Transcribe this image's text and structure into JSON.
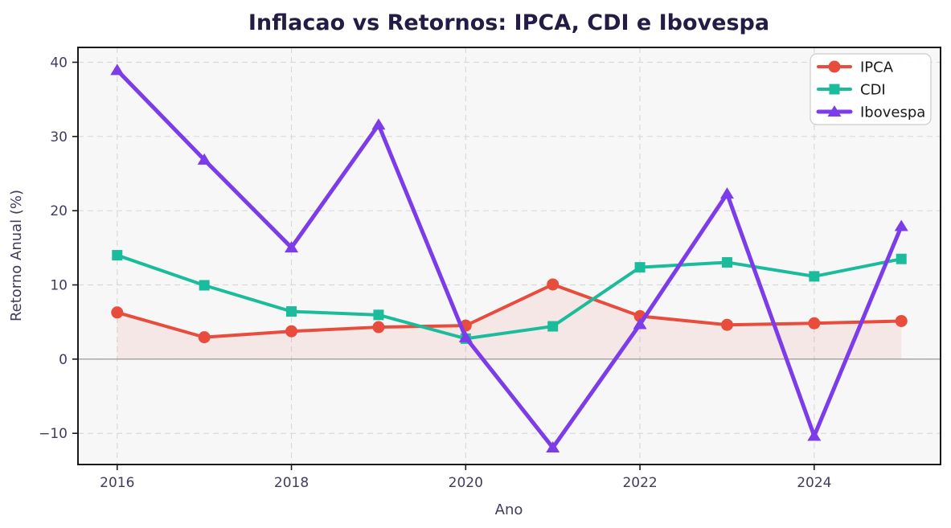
{
  "chart_data": {
    "type": "line",
    "title": "Inflacao vs Retornos: IPCA, CDI e Ibovespa",
    "xlabel": "Ano",
    "ylabel": "Retorno Anual (%)",
    "x": [
      2016,
      2017,
      2018,
      2019,
      2020,
      2021,
      2022,
      2023,
      2024,
      2025
    ],
    "series": [
      {
        "name": "IPCA",
        "color": "#e74c3c",
        "marker": "circle",
        "line_width": 4,
        "fill_to_zero": true,
        "fill_opacity": 0.09,
        "values": [
          6.29,
          2.95,
          3.75,
          4.31,
          4.52,
          10.06,
          5.79,
          4.62,
          4.83,
          5.13
        ]
      },
      {
        "name": "CDI",
        "color": "#1abc9c",
        "marker": "square",
        "line_width": 4,
        "values": [
          14.0,
          9.95,
          6.42,
          5.96,
          2.76,
          4.42,
          12.37,
          13.04,
          11.15,
          13.5
        ]
      },
      {
        "name": "Ibovespa",
        "color": "#7d3cea",
        "marker": "triangle",
        "line_width": 5,
        "values": [
          38.93,
          26.86,
          15.03,
          31.58,
          2.92,
          -11.93,
          4.69,
          22.28,
          -10.36,
          17.9
        ]
      }
    ],
    "xticks": [
      2016,
      2018,
      2020,
      2022,
      2024
    ],
    "yticks": [
      40,
      30,
      20,
      10,
      0,
      -10
    ],
    "xlim": [
      2015.55,
      2025.45
    ],
    "ylim": [
      -14.2,
      42.0
    ],
    "grid": true,
    "zero_line": true,
    "legend": {
      "position": "upper right",
      "labels": [
        "IPCA",
        "CDI",
        "Ibovespa"
      ]
    }
  },
  "style": {
    "figure_background": "#ffffff",
    "plot_background": "#f7f7f7",
    "grid_color": "#d9d9d9",
    "zero_line_color": "#9b9b9b",
    "spine_color": "#1a1a1a",
    "title_color": "#241c45",
    "text_color": "#413c5e",
    "legend_border_color": "#cccccc",
    "legend_background": "#ffffff"
  }
}
